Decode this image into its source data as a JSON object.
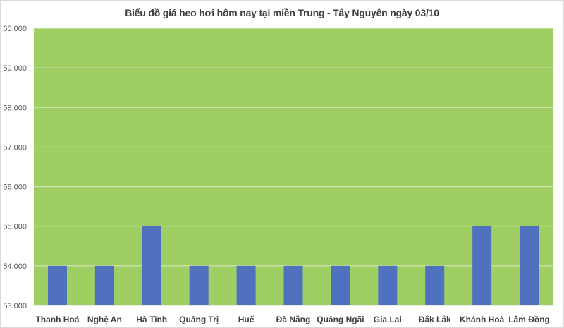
{
  "chart_data": {
    "type": "bar",
    "title": "Biểu đồ giá heo hơi hôm nay tại miền Trung - Tây Nguyên ngày 03/10",
    "categories": [
      "Thanh Hoá",
      "Nghệ An",
      "Hà Tĩnh",
      "Quảng Trị",
      "Huế",
      "Đà Nẵng",
      "Quảng Ngãi",
      "Gia Lai",
      "Đắk Lắk",
      "Khánh Hoà",
      "Lâm Đồng"
    ],
    "values": [
      54000,
      54000,
      55000,
      54000,
      54000,
      54000,
      54000,
      54000,
      54000,
      55000,
      55000
    ],
    "xlabel": "",
    "ylabel": "",
    "ylim": [
      53000,
      60000
    ],
    "yticks": [
      "53.000",
      "54.000",
      "55.000",
      "56.000",
      "57.000",
      "58.000",
      "59.000",
      "60.000"
    ],
    "grid": true,
    "colors": {
      "bar": "#4f71be",
      "plot_background": "#9fcf63",
      "grid": "#d9e9c4"
    }
  }
}
